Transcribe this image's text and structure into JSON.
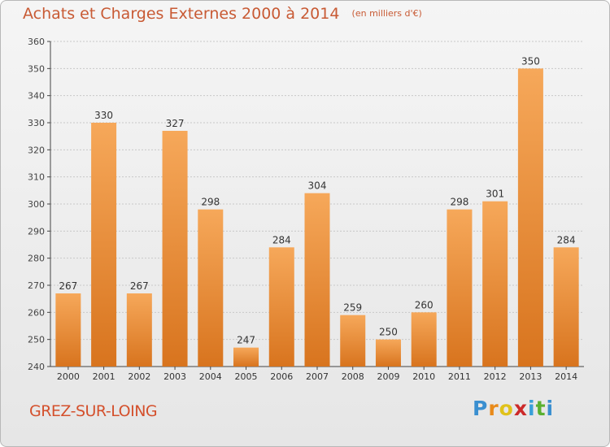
{
  "header": {
    "title": "Achats et Charges Externes 2000 à 2014",
    "subtitle": "(en milliers d'€)"
  },
  "commune_label": "GREZ-SUR-LOING",
  "logo": {
    "letters": [
      "P",
      "r",
      "o",
      "x",
      "i",
      "t",
      "i"
    ],
    "colors": [
      "#3a8fd0",
      "#e88a1a",
      "#e0c21a",
      "#cc2a2a",
      "#3aa0d8",
      "#5ab030",
      "#3a8fd0"
    ]
  },
  "colors": {
    "bar_top": "#f6a85a",
    "bar_bottom": "#d8741e",
    "title": "#c85a34",
    "grid": "#c8c8c8"
  },
  "chart_data": {
    "type": "bar",
    "title": "Achats et Charges Externes 2000 à 2014",
    "subtitle": "(en milliers d'€)",
    "categories": [
      "2000",
      "2001",
      "2002",
      "2003",
      "2004",
      "2005",
      "2006",
      "2007",
      "2008",
      "2009",
      "2010",
      "2011",
      "2012",
      "2013",
      "2014"
    ],
    "values": [
      267,
      330,
      267,
      327,
      298,
      247,
      284,
      304,
      259,
      250,
      260,
      298,
      301,
      350,
      284
    ],
    "ylim": [
      240,
      360
    ],
    "yticks": [
      240,
      250,
      260,
      270,
      280,
      290,
      300,
      310,
      320,
      330,
      340,
      350,
      360
    ],
    "grid": true,
    "xlabel": "",
    "ylabel": ""
  }
}
